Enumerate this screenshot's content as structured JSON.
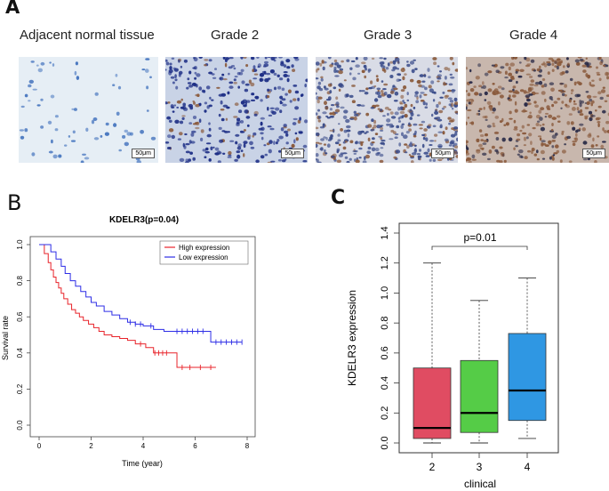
{
  "panels": {
    "a": "A",
    "b": "B",
    "c": "C"
  },
  "images": [
    {
      "label": "Adjacent normal tissue",
      "scale": "50μm",
      "bg": "#e6eef5",
      "nuc": "#4a78c0",
      "density": 70,
      "brown": 0
    },
    {
      "label": "Grade  2",
      "scale": "50μm",
      "bg": "#c9d3e6",
      "nuc": "#1e2f86",
      "density": 360,
      "brown": 0.15
    },
    {
      "label": "Grade 3",
      "scale": "50μm",
      "bg": "#d9dce6",
      "nuc": "#3a4c8a",
      "density": 520,
      "brown": 0.35
    },
    {
      "label": "Grade 4",
      "scale": "50μm",
      "bg": "#c8b7ad",
      "nuc": "#2b2c48",
      "density": 440,
      "brown": 0.7
    }
  ],
  "chart_data": [
    {
      "type": "line",
      "title": "KDELR3(p=0.04)",
      "xlabel": "Time (year)",
      "ylabel": "Survival rate",
      "xlim": [
        0,
        8
      ],
      "ylim": [
        0,
        1.0
      ],
      "xticks": [
        "0",
        "2",
        "4",
        "6",
        "8"
      ],
      "yticks": [
        "0.0",
        "0.2",
        "0.4",
        "0.6",
        "0.8",
        "1.0"
      ],
      "legend": {
        "position": "top-right",
        "entries": [
          "High expression",
          "Low expression"
        ]
      },
      "series": [
        {
          "name": "High expression",
          "color": "#e8232a",
          "x": [
            0,
            0.2,
            0.35,
            0.45,
            0.55,
            0.65,
            0.75,
            0.85,
            0.95,
            1.1,
            1.25,
            1.4,
            1.55,
            1.7,
            1.9,
            2.1,
            2.3,
            2.5,
            2.8,
            3.1,
            3.4,
            3.7,
            4.1,
            4.4,
            5.0,
            5.3,
            6.8
          ],
          "y": [
            1.0,
            0.95,
            0.9,
            0.86,
            0.82,
            0.79,
            0.76,
            0.73,
            0.7,
            0.67,
            0.64,
            0.62,
            0.6,
            0.58,
            0.56,
            0.54,
            0.52,
            0.5,
            0.49,
            0.48,
            0.47,
            0.45,
            0.43,
            0.4,
            0.4,
            0.32,
            0.32
          ],
          "censor_x": [
            3.9,
            4.45,
            4.6,
            4.75,
            4.9,
            5.5,
            5.8,
            6.2,
            6.6
          ]
        },
        {
          "name": "Low expression",
          "color": "#2d2de6",
          "x": [
            0,
            0.45,
            0.65,
            0.85,
            1.0,
            1.2,
            1.4,
            1.6,
            1.8,
            2.0,
            2.2,
            2.5,
            2.8,
            3.1,
            3.4,
            3.7,
            4.0,
            4.4,
            4.8,
            5.2,
            5.6,
            6.0,
            6.5,
            6.6,
            7.8
          ],
          "y": [
            1.0,
            0.96,
            0.92,
            0.88,
            0.84,
            0.8,
            0.77,
            0.74,
            0.71,
            0.68,
            0.66,
            0.63,
            0.61,
            0.59,
            0.57,
            0.56,
            0.55,
            0.53,
            0.52,
            0.52,
            0.52,
            0.52,
            0.52,
            0.46,
            0.46
          ],
          "censor_x": [
            3.5,
            3.7,
            3.9,
            4.3,
            5.3,
            5.5,
            5.7,
            5.9,
            6.1,
            6.3,
            6.8,
            7.0,
            7.2,
            7.4,
            7.6,
            7.8
          ]
        }
      ]
    },
    {
      "type": "box",
      "xlabel": "clinical",
      "ylabel": "KDELR3 expression",
      "ylim": [
        0,
        1.4
      ],
      "yticks": [
        "0.0",
        "0.2",
        "0.4",
        "0.6",
        "0.8",
        "1.0",
        "1.2",
        "1.4"
      ],
      "annotation": "p=0.01",
      "categories": [
        "2",
        "3",
        "4"
      ],
      "boxes": [
        {
          "name": "2",
          "color": "#e04c62",
          "min": 0.0,
          "q1": 0.03,
          "median": 0.1,
          "q3": 0.5,
          "max": 1.2
        },
        {
          "name": "3",
          "color": "#55cc47",
          "min": 0.0,
          "q1": 0.07,
          "median": 0.2,
          "q3": 0.55,
          "max": 0.95
        },
        {
          "name": "4",
          "color": "#2f97e3",
          "min": 0.03,
          "q1": 0.15,
          "median": 0.35,
          "q3": 0.73,
          "max": 1.1
        }
      ]
    }
  ]
}
